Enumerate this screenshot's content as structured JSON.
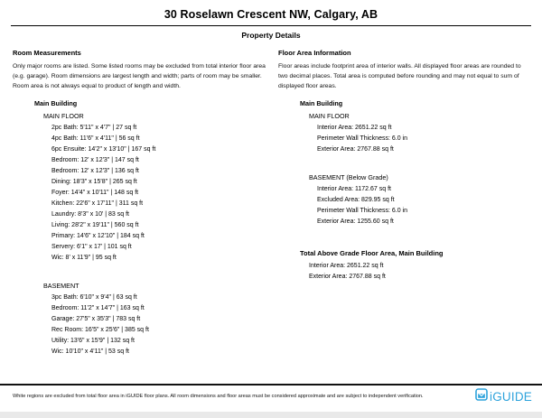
{
  "header": {
    "title": "30 Roselawn Crescent NW, Calgary, AB",
    "subtitle": "Property Details"
  },
  "room_measurements": {
    "heading": "Room Measurements",
    "intro": "Only major rooms are listed. Some listed rooms may be excluded from total interior floor area (e.g. garage). Room dimensions are largest length and width; parts of room may be smaller. Room area is not always equal to product of length and width.",
    "building": "Main Building",
    "floors": [
      {
        "name": "MAIN FLOOR",
        "rooms": [
          "2pc Bath: 5'11\" x 4'7\" | 27 sq ft",
          "4pc Bath: 11'6\" x 4'11\" | 56 sq ft",
          "6pc Ensuite: 14'2\" x 13'10\" | 167 sq ft",
          "Bedroom: 12' x 12'3\" | 147 sq ft",
          "Bedroom: 12' x 12'3\" | 136 sq ft",
          "Dining: 18'3\" x 15'8\" | 265 sq ft",
          "Foyer: 14'4\" x 10'11\" | 148 sq ft",
          "Kitchen: 22'6\" x 17'11\" | 311 sq ft",
          "Laundry: 8'3\" x 10' | 83 sq ft",
          "Living: 28'2\" x 19'11\" | 560 sq ft",
          "Primary: 14'6\" x 12'10\" | 184 sq ft",
          "Servery: 6'1\" x 17' | 101 sq ft",
          "Wic: 8' x 11'9\" | 95 sq ft"
        ]
      },
      {
        "name": "BASEMENT",
        "rooms": [
          "3pc Bath: 6'10\" x 9'4\" | 63 sq ft",
          "Bedroom: 11'2\" x 14'7\" | 163 sq ft",
          "Garage: 27'5\" x 35'3\" | 783 sq ft",
          "Rec Room: 16'5\" x 25'6\" | 385 sq ft",
          "Utility: 13'6\" x 15'9\" | 132 sq ft",
          "Wic: 10'10\" x 4'11\" | 53 sq ft"
        ]
      }
    ]
  },
  "floor_area_information": {
    "heading": "Floor Area Information",
    "intro": "Floor areas include footprint area of interior walls. All displayed floor areas are rounded to two decimal places. Total area is computed before rounding and may not equal to sum of displayed floor areas.",
    "building": "Main Building",
    "sections": [
      {
        "name": "MAIN FLOOR",
        "lines": [
          "Interior Area: 2651.22 sq ft",
          "Perimeter Wall Thickness: 6.0 in",
          "Exterior Area: 2767.88 sq ft"
        ]
      },
      {
        "name": "BASEMENT (Below Grade)",
        "lines": [
          "Interior Area: 1172.67 sq ft",
          "Excluded Area: 829.95 sq ft",
          "Perimeter Wall Thickness: 6.0 in",
          "Exterior Area: 1255.60 sq ft"
        ]
      }
    ],
    "total": {
      "heading": "Total Above Grade Floor Area, Main Building",
      "lines": [
        "Interior Area: 2651.22 sq ft",
        "Exterior Area: 2767.88 sq ft"
      ]
    }
  },
  "footer": {
    "disclaimer": "White regions are excluded from total floor area in iGUIDE floor plans. All room dimensions and floor areas must be considered approximate and are subject to independent verification.",
    "logo_text": "iGUIDE",
    "logo_color": "#2ea3dc"
  }
}
